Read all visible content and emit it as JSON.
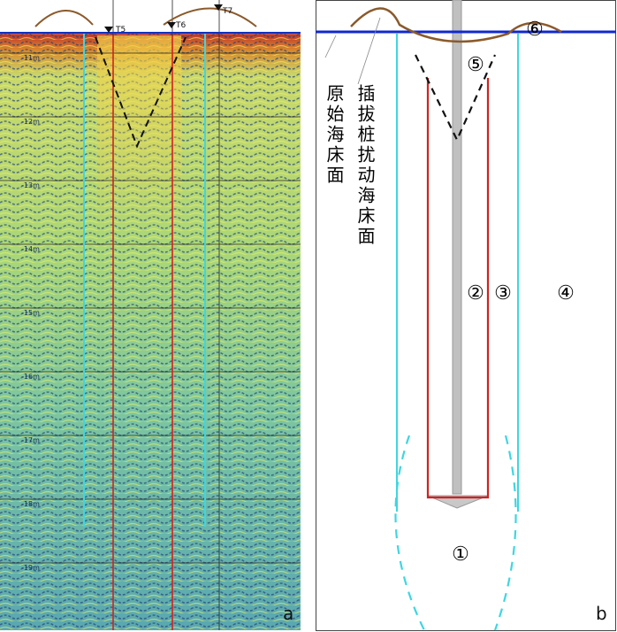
{
  "panel_a": {
    "label": "a",
    "depth_labels": [
      "-11m",
      "-12m",
      "-13m",
      "-14m",
      "-15m",
      "-16m",
      "-17m",
      "-18m",
      "-19m"
    ],
    "markers": [
      "T5",
      "T6",
      "T7"
    ]
  },
  "panel_b": {
    "label": "b",
    "original_seabed": "原始海床面",
    "disturbed_seabed": "插拔桩扰动海床面",
    "zones": [
      "①",
      "②",
      "③",
      "④",
      "⑤",
      "⑥"
    ]
  }
}
